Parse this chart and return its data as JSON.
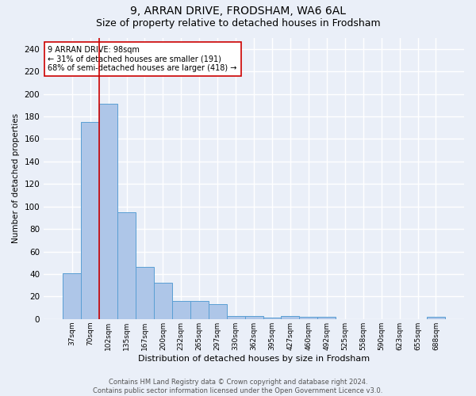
{
  "title1": "9, ARRAN DRIVE, FRODSHAM, WA6 6AL",
  "title2": "Size of property relative to detached houses in Frodsham",
  "xlabel": "Distribution of detached houses by size in Frodsham",
  "ylabel": "Number of detached properties",
  "bar_values": [
    41,
    175,
    191,
    95,
    46,
    32,
    16,
    16,
    13,
    3,
    3,
    1,
    3,
    2,
    2,
    0,
    0,
    0,
    0,
    0,
    2
  ],
  "bar_labels": [
    "37sqm",
    "70sqm",
    "102sqm",
    "135sqm",
    "167sqm",
    "200sqm",
    "232sqm",
    "265sqm",
    "297sqm",
    "330sqm",
    "362sqm",
    "395sqm",
    "427sqm",
    "460sqm",
    "492sqm",
    "525sqm",
    "558sqm",
    "590sqm",
    "623sqm",
    "655sqm",
    "688sqm"
  ],
  "bar_color": "#aec6e8",
  "bar_edge_color": "#5a9fd4",
  "bar_width": 1.0,
  "ylim": [
    0,
    250
  ],
  "yticks": [
    0,
    20,
    40,
    60,
    80,
    100,
    120,
    140,
    160,
    180,
    200,
    220,
    240
  ],
  "property_line_x": 1.5,
  "property_line_color": "#cc0000",
  "annotation_text": "9 ARRAN DRIVE: 98sqm\n← 31% of detached houses are smaller (191)\n68% of semi-detached houses are larger (418) →",
  "annotation_box_color": "#ffffff",
  "annotation_border_color": "#cc0000",
  "footer_text": "Contains HM Land Registry data © Crown copyright and database right 2024.\nContains public sector information licensed under the Open Government Licence v3.0.",
  "bg_color": "#eaeff8",
  "plot_bg_color": "#eaeff8",
  "grid_color": "#ffffff",
  "title1_fontsize": 10,
  "title2_fontsize": 9
}
